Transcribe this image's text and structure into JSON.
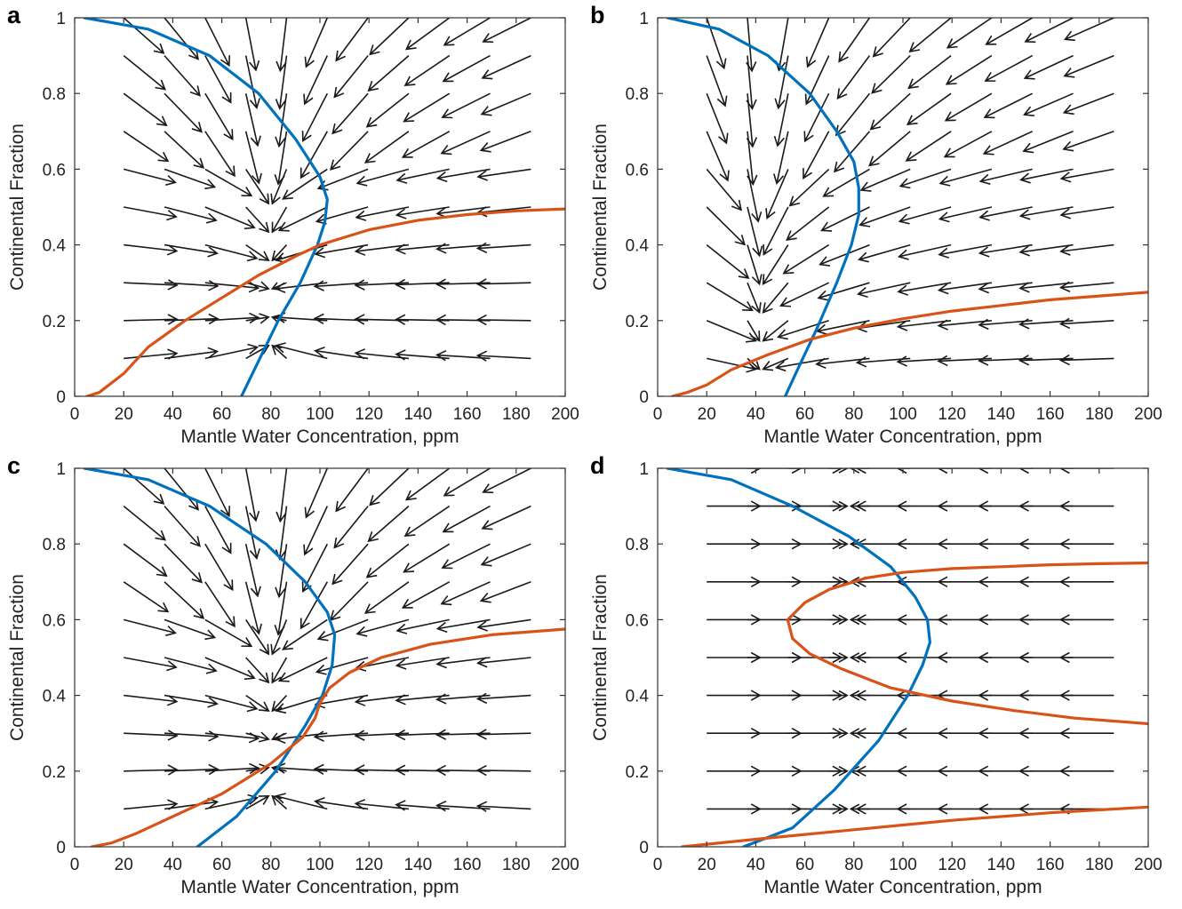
{
  "chart_data": [
    {
      "panel_label": "a",
      "type": "line",
      "xlabel": "Mantle Water Concentration, ppm",
      "ylabel": "Continental Fraction",
      "xlim": [
        0,
        200
      ],
      "ylim": [
        0,
        1
      ],
      "xticks": [
        "0",
        "20",
        "40",
        "60",
        "80",
        "100",
        "120",
        "140",
        "160",
        "180",
        "200"
      ],
      "yticks": [
        "0",
        "0.2",
        "0.4",
        "0.6",
        "0.8",
        "1"
      ],
      "series": [
        {
          "color": "#0072BD",
          "points": [
            [
              4,
              1.0
            ],
            [
              30,
              0.97
            ],
            [
              55,
              0.9
            ],
            [
              75,
              0.8
            ],
            [
              90,
              0.68
            ],
            [
              100,
              0.58
            ],
            [
              103,
              0.52
            ],
            [
              102,
              0.46
            ],
            [
              99,
              0.4
            ],
            [
              92,
              0.3
            ],
            [
              83,
              0.2
            ],
            [
              74,
              0.08
            ],
            [
              68,
              0.0
            ]
          ]
        },
        {
          "color": "#D95319",
          "points": [
            [
              5,
              0.0
            ],
            [
              10,
              0.01
            ],
            [
              20,
              0.06
            ],
            [
              30,
              0.13
            ],
            [
              45,
              0.2
            ],
            [
              60,
              0.26
            ],
            [
              75,
              0.32
            ],
            [
              90,
              0.37
            ],
            [
              100,
              0.4
            ],
            [
              120,
              0.44
            ],
            [
              140,
              0.465
            ],
            [
              160,
              0.48
            ],
            [
              180,
              0.49
            ],
            [
              200,
              0.495
            ]
          ]
        }
      ],
      "vector_field": {
        "x_start": 20,
        "x_step": 16.6,
        "y_start": 0.1,
        "y_step": 0.1,
        "fixed_point": [
          100,
          0.4
        ],
        "drift": [
          -0.2,
          -0.15
        ],
        "fy": 0.55
      }
    },
    {
      "panel_label": "b",
      "type": "line",
      "xlabel": "Mantle Water Concentration, ppm",
      "ylabel": "Continental Fraction",
      "xlim": [
        0,
        200
      ],
      "ylim": [
        0,
        1
      ],
      "xticks": [
        "0",
        "20",
        "40",
        "60",
        "80",
        "100",
        "120",
        "140",
        "160",
        "180",
        "200"
      ],
      "yticks": [
        "0",
        "0.2",
        "0.4",
        "0.6",
        "0.8",
        "1"
      ],
      "series": [
        {
          "color": "#0072BD",
          "points": [
            [
              4,
              1.0
            ],
            [
              25,
              0.97
            ],
            [
              45,
              0.9
            ],
            [
              62,
              0.8
            ],
            [
              73,
              0.7
            ],
            [
              80,
              0.62
            ],
            [
              82,
              0.55
            ],
            [
              82,
              0.48
            ],
            [
              79,
              0.4
            ],
            [
              73,
              0.3
            ],
            [
              65,
              0.18
            ],
            [
              57,
              0.07
            ],
            [
              52,
              0.0
            ]
          ]
        },
        {
          "color": "#D95319",
          "points": [
            [
              6,
              0.0
            ],
            [
              12,
              0.01
            ],
            [
              20,
              0.03
            ],
            [
              30,
              0.07
            ],
            [
              45,
              0.11
            ],
            [
              62,
              0.15
            ],
            [
              80,
              0.18
            ],
            [
              100,
              0.205
            ],
            [
              120,
              0.225
            ],
            [
              140,
              0.24
            ],
            [
              160,
              0.255
            ],
            [
              180,
              0.265
            ],
            [
              200,
              0.275
            ]
          ]
        }
      ],
      "vector_field": {
        "x_start": 20,
        "x_step": 16.6,
        "y_start": 0.1,
        "y_step": 0.1,
        "fixed_point": [
          62,
          0.15
        ],
        "drift": [
          -0.2,
          -0.15
        ],
        "fy": 0.55
      }
    },
    {
      "panel_label": "c",
      "type": "line",
      "xlabel": "Mantle Water Concentration, ppm",
      "ylabel": "Continental Fraction",
      "xlim": [
        0,
        200
      ],
      "ylim": [
        0,
        1
      ],
      "xticks": [
        "0",
        "20",
        "40",
        "60",
        "80",
        "100",
        "120",
        "140",
        "160",
        "180",
        "200"
      ],
      "yticks": [
        "0",
        "0.2",
        "0.4",
        "0.6",
        "0.8",
        "1"
      ],
      "series": [
        {
          "color": "#0072BD",
          "points": [
            [
              4,
              1.0
            ],
            [
              30,
              0.97
            ],
            [
              55,
              0.9
            ],
            [
              78,
              0.8
            ],
            [
              94,
              0.7
            ],
            [
              103,
              0.62
            ],
            [
              106,
              0.56
            ],
            [
              105,
              0.48
            ],
            [
              101,
              0.4
            ],
            [
              94,
              0.32
            ],
            [
              82,
              0.2
            ],
            [
              66,
              0.08
            ],
            [
              50,
              0.0
            ]
          ]
        },
        {
          "color": "#D95319",
          "points": [
            [
              7,
              0.0
            ],
            [
              15,
              0.01
            ],
            [
              25,
              0.035
            ],
            [
              40,
              0.08
            ],
            [
              60,
              0.14
            ],
            [
              80,
              0.22
            ],
            [
              93,
              0.29
            ],
            [
              98,
              0.34
            ],
            [
              100,
              0.38
            ],
            [
              104,
              0.42
            ],
            [
              112,
              0.46
            ],
            [
              125,
              0.5
            ],
            [
              145,
              0.535
            ],
            [
              170,
              0.56
            ],
            [
              200,
              0.575
            ]
          ]
        }
      ],
      "vector_field": {
        "x_start": 20,
        "x_step": 16.6,
        "y_start": 0.1,
        "y_step": 0.1,
        "fixed_point": [
          100,
          0.4
        ],
        "drift": [
          -0.2,
          -0.15
        ],
        "fy": 0.55
      }
    },
    {
      "panel_label": "d",
      "type": "line",
      "xlabel": "Mantle Water Concentration, ppm",
      "ylabel": "Continental Fraction",
      "xlim": [
        0,
        200
      ],
      "ylim": [
        0,
        1
      ],
      "xticks": [
        "0",
        "20",
        "40",
        "60",
        "80",
        "100",
        "120",
        "140",
        "160",
        "180",
        "200"
      ],
      "yticks": [
        "0",
        "0.2",
        "0.4",
        "0.6",
        "0.8",
        "1"
      ],
      "series": [
        {
          "color": "#0072BD",
          "points": [
            [
              4,
              1.0
            ],
            [
              30,
              0.97
            ],
            [
              55,
              0.9
            ],
            [
              78,
              0.82
            ],
            [
              95,
              0.74
            ],
            [
              105,
              0.66
            ],
            [
              110,
              0.6
            ],
            [
              111,
              0.54
            ],
            [
              108,
              0.48
            ],
            [
              102,
              0.4
            ],
            [
              90,
              0.28
            ],
            [
              72,
              0.15
            ],
            [
              55,
              0.05
            ],
            [
              35,
              0.0
            ]
          ]
        },
        {
          "color": "#D95319",
          "points": [
            [
              200,
              0.75
            ],
            [
              180,
              0.748
            ],
            [
              160,
              0.745
            ],
            [
              140,
              0.74
            ],
            [
              120,
              0.735
            ],
            [
              100,
              0.725
            ],
            [
              85,
              0.71
            ],
            [
              70,
              0.68
            ],
            [
              60,
              0.645
            ],
            [
              53,
              0.6
            ],
            [
              55,
              0.55
            ],
            [
              62,
              0.51
            ],
            [
              75,
              0.47
            ],
            [
              95,
              0.42
            ],
            [
              120,
              0.385
            ],
            [
              145,
              0.36
            ],
            [
              170,
              0.34
            ],
            [
              200,
              0.325
            ]
          ]
        },
        {
          "color": "#D95319",
          "points": [
            [
              10,
              0.0
            ],
            [
              40,
              0.02
            ],
            [
              80,
              0.045
            ],
            [
              120,
              0.07
            ],
            [
              160,
              0.09
            ],
            [
              200,
              0.105
            ]
          ]
        }
      ],
      "vector_field": {
        "x_start": 20,
        "x_step": 16.6,
        "y_start": 0.1,
        "y_step": 0.1,
        "fixed_point": [
          100,
          0.6
        ],
        "drift": [
          -0.22,
          0.0
        ],
        "fy": 0.0
      }
    }
  ]
}
